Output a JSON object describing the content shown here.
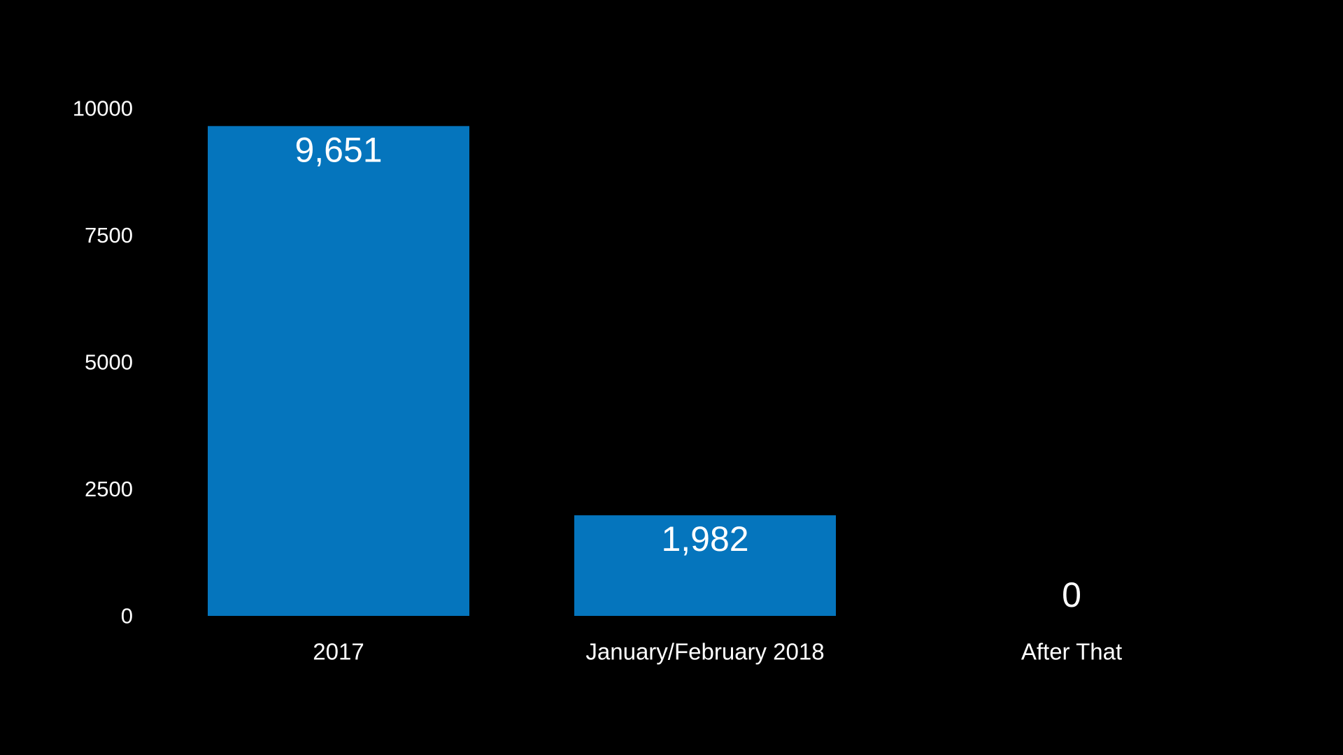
{
  "chart_data": {
    "type": "bar",
    "categories": [
      "2017",
      "January/February 2018",
      "After That"
    ],
    "values": [
      9651,
      1982,
      0
    ],
    "data_labels": [
      "9,651",
      "1,982",
      "0"
    ],
    "yticks": [
      "0",
      "2500",
      "5000",
      "7500",
      "10000"
    ],
    "ylim": [
      0,
      10000
    ],
    "title": "",
    "xlabel": "",
    "ylabel": "",
    "grid": false,
    "legend": "none",
    "bar_color": "#0575BD",
    "background_color": "#000000",
    "text_color": "#FFFFFF"
  }
}
